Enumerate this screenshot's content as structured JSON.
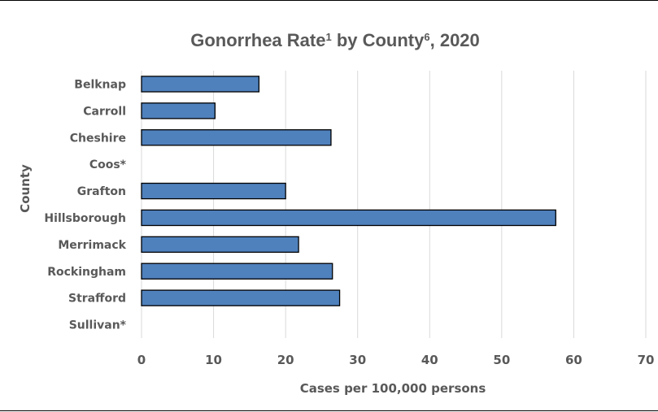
{
  "chart_data": {
    "type": "bar",
    "orientation": "horizontal",
    "title": {
      "segments": [
        {
          "text": "Gonorrhea Rate",
          "sup": false
        },
        {
          "text": "1",
          "sup": true
        },
        {
          "text": " by County",
          "sup": false
        },
        {
          "text": "6",
          "sup": true
        },
        {
          "text": ", 2020",
          "sup": false
        }
      ]
    },
    "xlabel": "Cases per 100,000 persons",
    "ylabel": "County",
    "categories": [
      "Belknap",
      "Carroll",
      "Cheshire",
      "Coos*",
      "Grafton",
      "Hillsborough",
      "Merrimack",
      "Rockingham",
      "Strafford",
      "Sullivan*"
    ],
    "values": [
      16.3,
      10.2,
      26.3,
      null,
      20.0,
      57.5,
      21.8,
      26.5,
      27.5,
      null
    ],
    "xlim": [
      0,
      70
    ],
    "xticks": [
      0,
      10,
      20,
      30,
      40,
      50,
      60,
      70
    ],
    "grid": true,
    "legend": "none",
    "colors": {
      "bar_fill": "#4f81bd",
      "bar_stroke": "#000000",
      "grid": "#d9d9d9",
      "text": "#595959"
    }
  }
}
